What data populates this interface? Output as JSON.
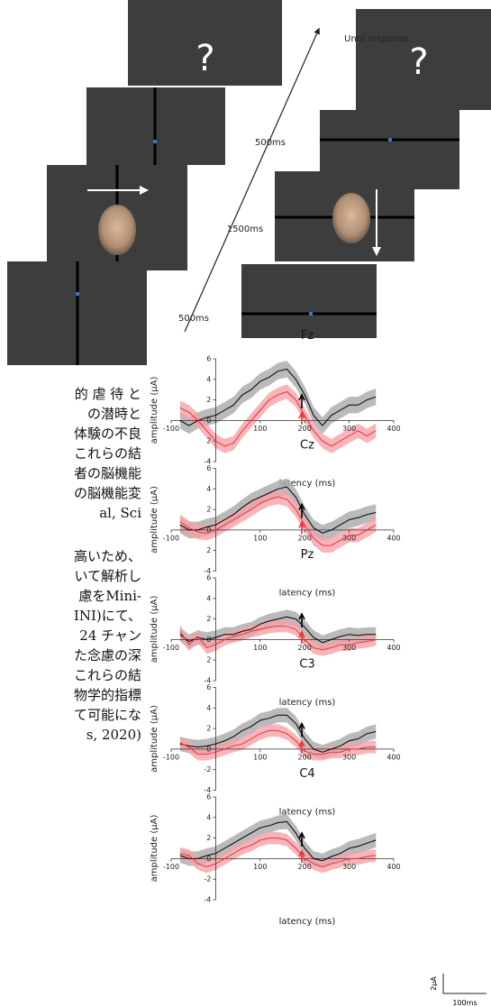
{
  "diagram": {
    "question_left": "?",
    "question_right": "?",
    "timings": [
      "Until response",
      "500ms",
      "1500ms",
      "500ms"
    ]
  },
  "document": {
    "lines": [
      "的 虐 待 と",
      "の潜時と",
      "体験の不良",
      "これらの結",
      "者の脳機能",
      "の脳機能変",
      "al,  Sci",
      "高いため、",
      "いて解析し",
      "慮をMini-",
      "INI)にて、",
      "24 チャン",
      "た念慮の深",
      "これらの結",
      "物学的指標",
      "て可能にな",
      "s, 2020)"
    ]
  },
  "scale_bar": {
    "amplitude": "2µA",
    "time": "100ms"
  },
  "chart_data": [
    {
      "type": "line",
      "title": "Fz",
      "xlabel": "latency (ms)",
      "ylabel": "amplitude (µA)",
      "x": [
        -80,
        -60,
        -40,
        -20,
        0,
        20,
        40,
        60,
        80,
        100,
        120,
        140,
        160,
        180,
        200,
        220,
        240,
        260,
        280,
        300,
        320,
        340,
        360
      ],
      "xlim": [
        -100,
        400
      ],
      "xticks": [
        -100,
        100,
        200,
        300,
        400
      ],
      "ylim": [
        -4,
        6
      ],
      "yticks": [
        6,
        4,
        2,
        0,
        {
          "value": -2,
          "label": "2"
        },
        -4
      ],
      "series": [
        {
          "color": "#000000",
          "band_color": "#a9a9a9",
          "error": 0.8,
          "values": [
            0,
            -0.5,
            0,
            0.3,
            0.5,
            1,
            1.5,
            2.5,
            3,
            3.8,
            4.2,
            4.8,
            5,
            4,
            2.5,
            0.5,
            -0.5,
            0.5,
            1,
            1.5,
            1.5,
            2,
            2.3
          ]
        },
        {
          "color": "#e8323c",
          "band_color": "#f5a3a8",
          "error": 0.7,
          "values": [
            1.2,
            0.8,
            0,
            -1,
            -2,
            -2.5,
            -2.2,
            -1,
            0,
            1,
            2,
            2.5,
            2.8,
            2,
            0.5,
            -1,
            -2,
            -2.5,
            -2,
            -1.5,
            -1,
            -1.5,
            -1
          ]
        }
      ]
    },
    {
      "type": "line",
      "title": "Cz",
      "xlabel": "latency (ms)",
      "ylabel": "amplitude (µA)",
      "x": [
        -80,
        -60,
        -40,
        -20,
        0,
        20,
        40,
        60,
        80,
        100,
        120,
        140,
        160,
        180,
        200,
        220,
        240,
        260,
        280,
        300,
        320,
        340,
        360
      ],
      "xlim": [
        -100,
        400
      ],
      "xticks": [
        -100,
        100,
        200,
        300,
        400
      ],
      "ylim": [
        -4,
        6
      ],
      "yticks": [
        6,
        4,
        2,
        0,
        {
          "value": -2,
          "label": "2"
        },
        -4
      ],
      "series": [
        {
          "color": "#000000",
          "band_color": "#a9a9a9",
          "error": 0.8,
          "values": [
            0.5,
            0,
            0,
            0.3,
            0.5,
            1,
            1.5,
            2.2,
            2.8,
            3.2,
            3.6,
            4,
            4.2,
            3.2,
            1.5,
            0.2,
            -0.3,
            0,
            0.5,
            1,
            1.2,
            1.5,
            1.7
          ]
        },
        {
          "color": "#e8323c",
          "band_color": "#f5a3a8",
          "error": 0.7,
          "values": [
            0.8,
            0.2,
            -0.2,
            -0.3,
            0,
            0.5,
            1,
            1.5,
            2,
            2.6,
            3,
            3.2,
            3,
            2,
            0.5,
            -0.8,
            -1.5,
            -1.5,
            -1,
            -0.5,
            -0.5,
            0,
            0.5
          ]
        }
      ]
    },
    {
      "type": "line",
      "title": "Pz",
      "xlabel": "latency (ms)",
      "ylabel": "amplitude (µA)",
      "x": [
        -80,
        -60,
        -40,
        -20,
        0,
        20,
        40,
        60,
        80,
        100,
        120,
        140,
        160,
        180,
        200,
        220,
        240,
        260,
        280,
        300,
        320,
        340,
        360
      ],
      "xlim": [
        -100,
        400
      ],
      "xticks": [
        -100,
        100,
        200,
        300,
        400
      ],
      "ylim": [
        -4,
        6
      ],
      "yticks": [
        6,
        4,
        2,
        0,
        {
          "value": -2,
          "label": "2"
        },
        -4
      ],
      "series": [
        {
          "color": "#000000",
          "band_color": "#a9a9a9",
          "error": 0.7,
          "values": [
            0.5,
            -0.2,
            0.2,
            0,
            0.2,
            0.5,
            0.5,
            0.8,
            1,
            1.5,
            1.8,
            2,
            2.2,
            2,
            1.2,
            0.2,
            -0.3,
            0,
            0.3,
            0.5,
            0.4,
            0.5,
            0.5
          ]
        },
        {
          "color": "#e8323c",
          "band_color": "#f5a3a8",
          "error": 0.6,
          "values": [
            0.8,
            -0.5,
            0.3,
            -0.8,
            -0.5,
            0,
            0.3,
            0.5,
            0.8,
            1,
            1.2,
            1.3,
            1.3,
            1,
            0,
            -0.8,
            -1,
            -0.8,
            -0.5,
            -0.5,
            -0.3,
            -0.2,
            0
          ]
        }
      ]
    },
    {
      "type": "line",
      "title": "C3",
      "xlabel": "latency (ms)",
      "ylabel": "amplitude (µA)",
      "x": [
        -80,
        -60,
        -40,
        -20,
        0,
        20,
        40,
        60,
        80,
        100,
        120,
        140,
        160,
        180,
        200,
        220,
        240,
        260,
        280,
        300,
        320,
        340,
        360
      ],
      "xlim": [
        -100,
        400
      ],
      "xticks": [
        -100,
        100,
        200,
        300,
        400
      ],
      "ylim": [
        -4,
        6
      ],
      "yticks": [
        6,
        4,
        2,
        0,
        -2,
        -4
      ],
      "series": [
        {
          "color": "#000000",
          "band_color": "#a9a9a9",
          "error": 0.7,
          "values": [
            0.5,
            0.3,
            0.2,
            0.3,
            0.5,
            0.8,
            1.2,
            1.8,
            2.2,
            2.8,
            3,
            3.3,
            3.3,
            2.5,
            1,
            0,
            -0.3,
            0,
            0.3,
            0.8,
            1,
            1.5,
            1.7
          ]
        },
        {
          "color": "#e8323c",
          "band_color": "#f5a3a8",
          "error": 0.6,
          "values": [
            0.6,
            0.2,
            -0.5,
            -0.5,
            -0.3,
            0,
            0.3,
            0.5,
            1,
            1.5,
            1.8,
            1.8,
            1.5,
            0.8,
            -0.2,
            -0.5,
            -0.5,
            -0.3,
            -0.3,
            0,
            0,
            0.2,
            0.2
          ]
        }
      ]
    },
    {
      "type": "line",
      "title": "C4",
      "xlabel": "latency (ms)",
      "ylabel": "amplitude (µA)",
      "x": [
        -80,
        -60,
        -40,
        -20,
        0,
        20,
        40,
        60,
        80,
        100,
        120,
        140,
        160,
        180,
        200,
        220,
        240,
        260,
        280,
        300,
        320,
        340,
        360
      ],
      "xlim": [
        -100,
        400
      ],
      "xticks": [
        -100,
        100,
        200,
        300,
        400
      ],
      "ylim": [
        -4,
        6
      ],
      "yticks": [
        6,
        4,
        2,
        0,
        -2,
        -4
      ],
      "series": [
        {
          "color": "#000000",
          "band_color": "#a9a9a9",
          "error": 0.7,
          "values": [
            0.3,
            0,
            0,
            0.3,
            0.5,
            1,
            1.5,
            2,
            2.5,
            3,
            3.2,
            3.5,
            3.6,
            2.5,
            1,
            0,
            -0.2,
            0.2,
            0.5,
            1,
            1.2,
            1.5,
            1.8
          ]
        },
        {
          "color": "#e8323c",
          "band_color": "#f5a3a8",
          "error": 0.6,
          "values": [
            0.5,
            0.3,
            -0.5,
            -0.8,
            -0.5,
            0,
            0.5,
            1,
            1.3,
            1.8,
            2,
            2,
            1.8,
            1,
            0,
            -0.5,
            -0.8,
            -0.5,
            -0.3,
            0,
            0,
            0.2,
            0.3
          ]
        }
      ]
    }
  ]
}
